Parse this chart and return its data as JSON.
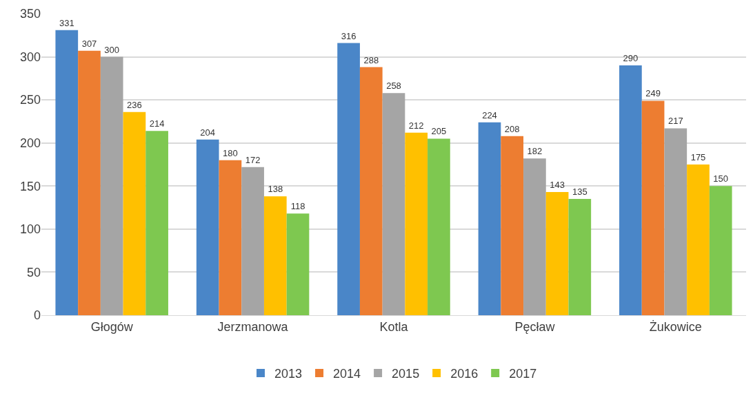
{
  "chart_data": {
    "type": "bar",
    "categories": [
      "Głogów",
      "Jerzmanowa",
      "Kotla",
      "Pęcław",
      "Żukowice"
    ],
    "series": [
      {
        "name": "2013",
        "color": "#4a86c8",
        "values": [
          331,
          204,
          316,
          224,
          290
        ]
      },
      {
        "name": "2014",
        "color": "#ed7d31",
        "values": [
          307,
          180,
          288,
          208,
          249
        ]
      },
      {
        "name": "2015",
        "color": "#a5a5a5",
        "values": [
          300,
          172,
          258,
          182,
          217
        ]
      },
      {
        "name": "2016",
        "color": "#ffc000",
        "values": [
          236,
          138,
          212,
          143,
          175
        ]
      },
      {
        "name": "2017",
        "color": "#7ec850",
        "values": [
          214,
          118,
          205,
          135,
          150
        ]
      }
    ],
    "ylim": [
      0,
      350
    ],
    "yticks": [
      0,
      50,
      100,
      150,
      200,
      250,
      300,
      350
    ],
    "grid": "y",
    "legend": "bottom",
    "data_labels": true
  }
}
